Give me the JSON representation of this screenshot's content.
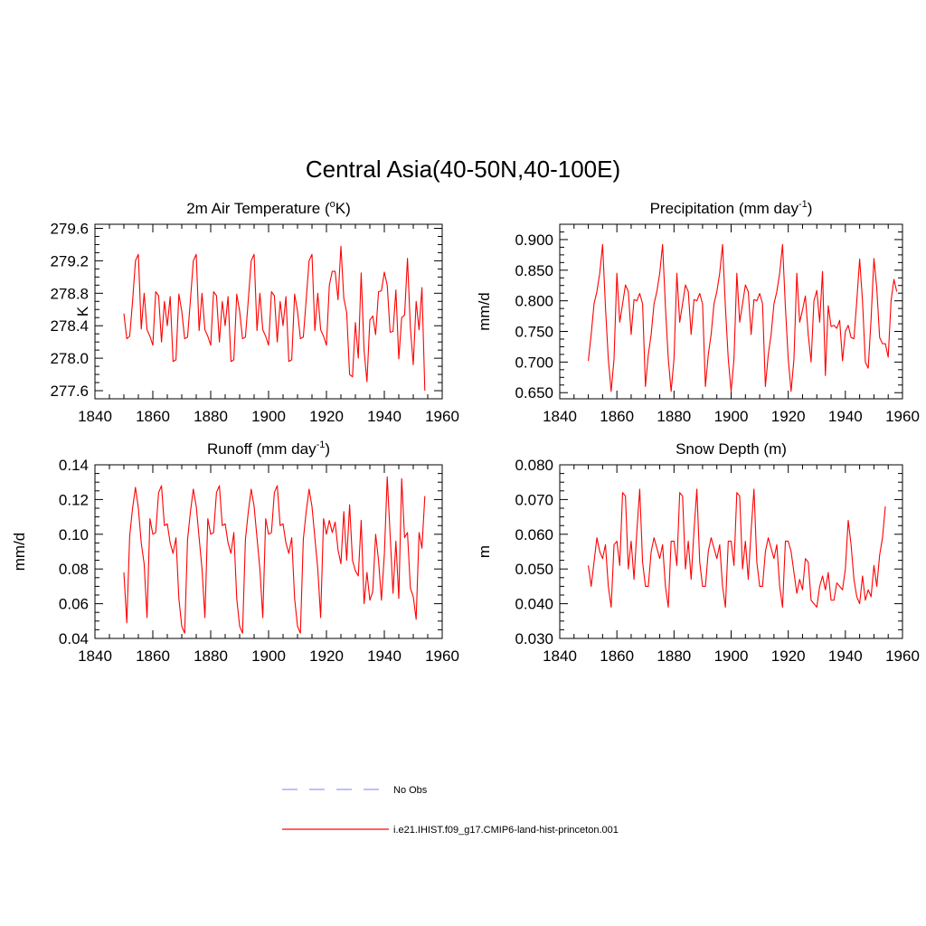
{
  "figure": {
    "title": "Central Asia(40-50N,40-100E)"
  },
  "legend": {
    "entries": [
      {
        "name": "No Obs",
        "color": "#9999ff",
        "style": "dashed"
      },
      {
        "name": "i.e21.IHIST.f09_g17.CMIP6-land-hist-princeton.001",
        "color": "#ff0000",
        "style": "solid"
      }
    ]
  },
  "chart_data": [
    {
      "type": "line",
      "title": "2m Air Temperature (",
      "title_sup": "o",
      "title_tail": "K)",
      "ylabel": "K",
      "xlim": [
        1840,
        1960
      ],
      "ylim": [
        277.5,
        279.65
      ],
      "xticks": [
        "1840",
        "1860",
        "1880",
        "1900",
        "1920",
        "1940",
        "1960"
      ],
      "yticks": [
        "277.6",
        "278.0",
        "278.4",
        "278.8",
        "279.2",
        "279.6"
      ],
      "series": [
        {
          "color": "#ff0000",
          "x_start": 1850,
          "values": [
            278.55,
            278.24,
            278.27,
            278.7,
            279.2,
            279.28,
            278.36,
            278.8,
            278.35,
            278.27,
            278.16,
            278.82,
            278.77,
            278.2,
            278.7,
            278.4,
            278.76,
            277.96,
            277.98,
            278.79,
            278.58,
            278.24,
            278.26,
            278.72,
            279.2,
            279.28,
            278.34,
            278.8,
            278.35,
            278.27,
            278.16,
            278.82,
            278.77,
            278.2,
            278.7,
            278.4,
            278.76,
            277.96,
            277.98,
            278.79,
            278.58,
            278.24,
            278.26,
            278.72,
            279.2,
            279.28,
            278.34,
            278.8,
            278.35,
            278.27,
            278.16,
            278.82,
            278.77,
            278.2,
            278.7,
            278.4,
            278.76,
            277.96,
            277.98,
            278.79,
            278.58,
            278.24,
            278.26,
            278.72,
            279.2,
            279.28,
            278.34,
            278.8,
            278.35,
            278.27,
            278.16,
            278.9,
            279.07,
            279.07,
            278.72,
            279.38,
            278.74,
            278.56,
            277.8,
            277.77,
            278.44,
            278.0,
            279.05,
            278.1,
            277.71,
            278.47,
            278.52,
            278.29,
            278.82,
            278.83,
            279.06,
            278.9,
            278.32,
            278.33,
            278.84,
            277.99,
            278.5,
            278.53,
            279.23,
            278.38,
            277.92,
            278.7,
            278.35,
            278.87,
            277.6
          ]
        }
      ]
    },
    {
      "type": "line",
      "title": "Precipitation (mm day",
      "title_sup": "-1",
      "title_tail": ")",
      "ylabel": "mm/d",
      "xlim": [
        1840,
        1960
      ],
      "ylim": [
        0.64,
        0.925
      ],
      "xticks": [
        "1840",
        "1860",
        "1880",
        "1900",
        "1920",
        "1940",
        "1960"
      ],
      "yticks": [
        "0.650",
        "0.700",
        "0.750",
        "0.800",
        "0.850",
        "0.900"
      ],
      "series": [
        {
          "color": "#ff0000",
          "x_start": 1850,
          "values": [
            0.702,
            0.745,
            0.795,
            0.815,
            0.845,
            0.892,
            0.79,
            0.705,
            0.652,
            0.705,
            0.845,
            0.765,
            0.795,
            0.826,
            0.815,
            0.745,
            0.802,
            0.8,
            0.812,
            0.795,
            0.66,
            0.712,
            0.745,
            0.795,
            0.815,
            0.845,
            0.892,
            0.79,
            0.705,
            0.652,
            0.705,
            0.845,
            0.765,
            0.795,
            0.826,
            0.815,
            0.745,
            0.802,
            0.8,
            0.812,
            0.795,
            0.66,
            0.712,
            0.745,
            0.795,
            0.815,
            0.845,
            0.892,
            0.79,
            0.705,
            0.652,
            0.705,
            0.845,
            0.765,
            0.795,
            0.826,
            0.815,
            0.745,
            0.802,
            0.8,
            0.812,
            0.795,
            0.66,
            0.712,
            0.745,
            0.795,
            0.815,
            0.845,
            0.892,
            0.79,
            0.705,
            0.652,
            0.705,
            0.845,
            0.765,
            0.785,
            0.808,
            0.745,
            0.7,
            0.8,
            0.817,
            0.765,
            0.848,
            0.678,
            0.792,
            0.758,
            0.76,
            0.755,
            0.768,
            0.702,
            0.75,
            0.76,
            0.74,
            0.738,
            0.8,
            0.868,
            0.8,
            0.7,
            0.69,
            0.77,
            0.869,
            0.82,
            0.74,
            0.73,
            0.73,
            0.708,
            0.8,
            0.835,
            0.815
          ]
        }
      ]
    },
    {
      "type": "line",
      "title": "Runoff (mm day",
      "title_sup": "-1",
      "title_tail": ")",
      "ylabel": "mm/d",
      "xlim": [
        1840,
        1960
      ],
      "ylim": [
        0.04,
        0.14
      ],
      "xticks": [
        "1840",
        "1860",
        "1880",
        "1900",
        "1920",
        "1940",
        "1960"
      ],
      "yticks": [
        "0.04",
        "0.06",
        "0.08",
        "0.10",
        "0.12",
        "0.14"
      ],
      "series": [
        {
          "color": "#ff0000",
          "x_start": 1850,
          "values": [
            0.078,
            0.049,
            0.099,
            0.115,
            0.127,
            0.115,
            0.095,
            0.083,
            0.052,
            0.109,
            0.1,
            0.101,
            0.124,
            0.128,
            0.105,
            0.106,
            0.095,
            0.089,
            0.098,
            0.063,
            0.047,
            0.043,
            0.097,
            0.113,
            0.126,
            0.116,
            0.098,
            0.08,
            0.052,
            0.109,
            0.1,
            0.101,
            0.124,
            0.128,
            0.105,
            0.106,
            0.095,
            0.089,
            0.101,
            0.063,
            0.047,
            0.043,
            0.097,
            0.113,
            0.126,
            0.116,
            0.098,
            0.08,
            0.052,
            0.109,
            0.1,
            0.101,
            0.124,
            0.128,
            0.105,
            0.106,
            0.095,
            0.089,
            0.098,
            0.063,
            0.047,
            0.043,
            0.097,
            0.113,
            0.126,
            0.116,
            0.098,
            0.08,
            0.052,
            0.109,
            0.1,
            0.108,
            0.101,
            0.107,
            0.091,
            0.083,
            0.113,
            0.085,
            0.117,
            0.085,
            0.079,
            0.076,
            0.108,
            0.06,
            0.078,
            0.062,
            0.067,
            0.1,
            0.085,
            0.062,
            0.088,
            0.133,
            0.1,
            0.066,
            0.096,
            0.063,
            0.132,
            0.098,
            0.101,
            0.069,
            0.064,
            0.051,
            0.101,
            0.092,
            0.122
          ]
        }
      ]
    },
    {
      "type": "line",
      "title": "Snow Depth (m)",
      "title_sup": "",
      "title_tail": "",
      "ylabel": "m",
      "xlim": [
        1840,
        1960
      ],
      "ylim": [
        0.03,
        0.08
      ],
      "xticks": [
        "1840",
        "1860",
        "1880",
        "1900",
        "1920",
        "1940",
        "1960"
      ],
      "yticks": [
        "0.030",
        "0.040",
        "0.050",
        "0.060",
        "0.070",
        "0.080"
      ],
      "series": [
        {
          "color": "#ff0000",
          "x_start": 1850,
          "values": [
            0.051,
            0.045,
            0.052,
            0.059,
            0.055,
            0.053,
            0.057,
            0.045,
            0.039,
            0.057,
            0.058,
            0.051,
            0.072,
            0.071,
            0.05,
            0.058,
            0.047,
            0.061,
            0.073,
            0.052,
            0.045,
            0.045,
            0.055,
            0.059,
            0.056,
            0.053,
            0.057,
            0.045,
            0.039,
            0.058,
            0.058,
            0.051,
            0.072,
            0.071,
            0.05,
            0.058,
            0.047,
            0.061,
            0.073,
            0.052,
            0.045,
            0.045,
            0.055,
            0.059,
            0.056,
            0.053,
            0.057,
            0.045,
            0.039,
            0.058,
            0.058,
            0.051,
            0.072,
            0.071,
            0.05,
            0.058,
            0.047,
            0.061,
            0.073,
            0.052,
            0.045,
            0.045,
            0.055,
            0.059,
            0.056,
            0.053,
            0.057,
            0.045,
            0.039,
            0.058,
            0.058,
            0.055,
            0.049,
            0.043,
            0.047,
            0.044,
            0.053,
            0.052,
            0.041,
            0.04,
            0.039,
            0.045,
            0.048,
            0.044,
            0.049,
            0.041,
            0.041,
            0.046,
            0.045,
            0.044,
            0.05,
            0.064,
            0.057,
            0.047,
            0.042,
            0.04,
            0.048,
            0.041,
            0.044,
            0.042,
            0.051,
            0.045,
            0.054,
            0.059,
            0.068
          ]
        }
      ]
    }
  ]
}
